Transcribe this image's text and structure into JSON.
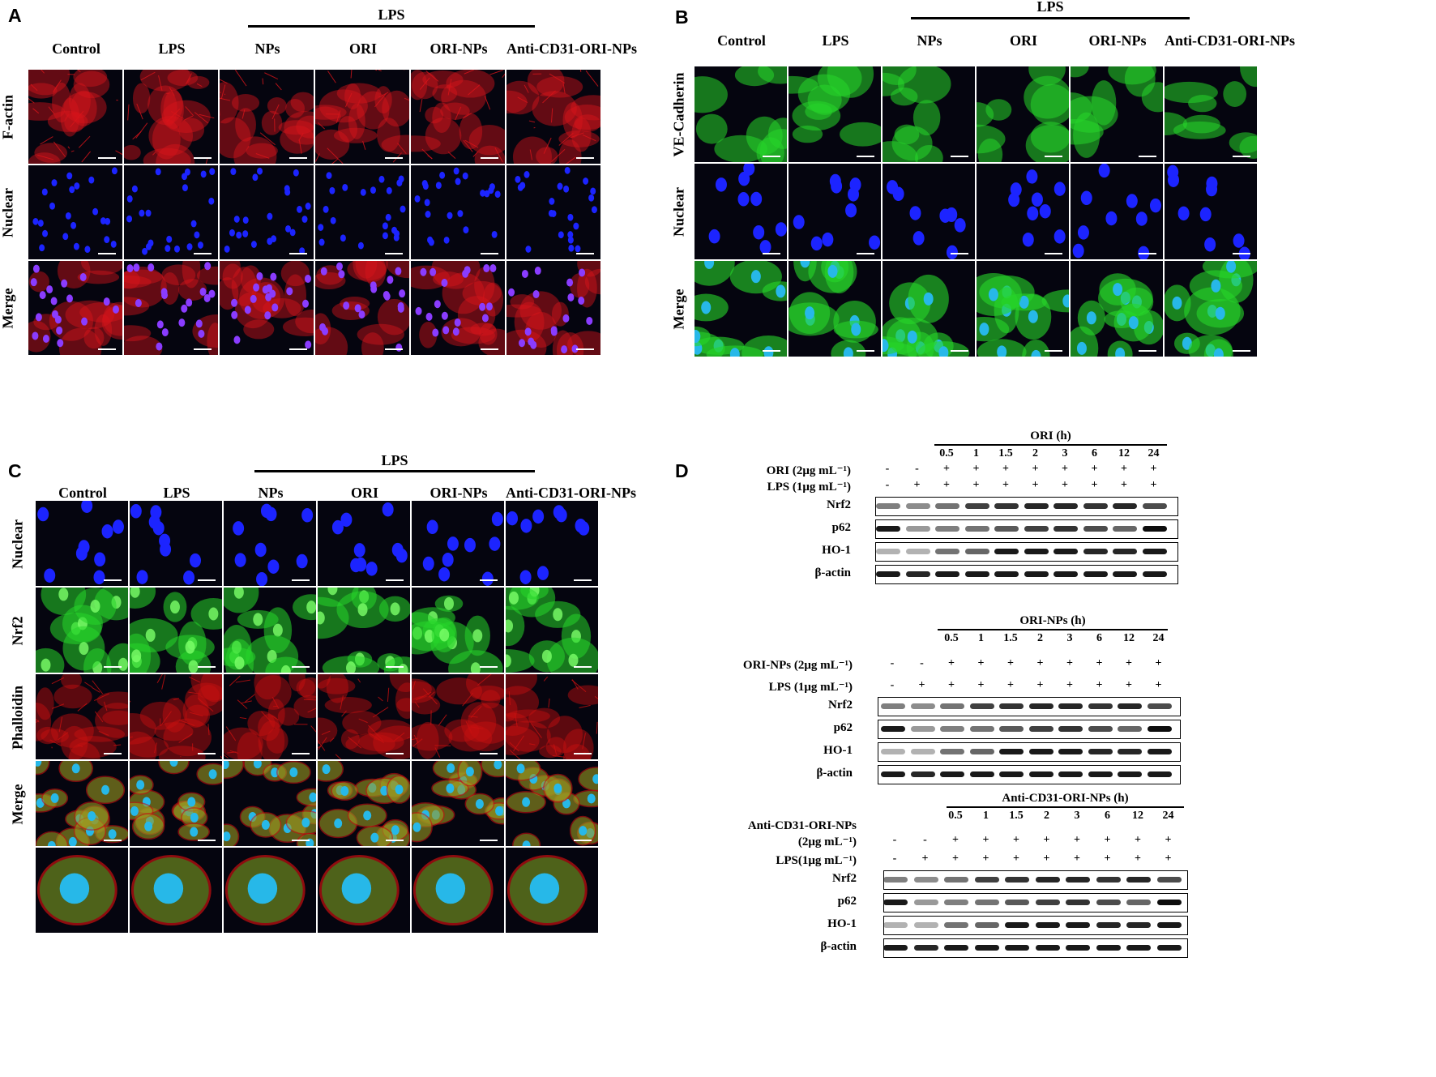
{
  "panels": {
    "A": {
      "letter": "A",
      "lps_label": "LPS",
      "columns": [
        "Control",
        "LPS",
        "NPs",
        "ORI",
        "ORI-NPs",
        "Anti-CD31-ORI-NPs"
      ],
      "rows": [
        "F-actin",
        "Nuclear",
        "Merge"
      ]
    },
    "B": {
      "letter": "B",
      "lps_label": "LPS",
      "columns": [
        "Control",
        "LPS",
        "NPs",
        "ORI",
        "ORI-NPs",
        "Anti-CD31-ORI-NPs"
      ],
      "rows": [
        "VE-Cadherin",
        "Nuclear",
        "Merge"
      ]
    },
    "C": {
      "letter": "C",
      "lps_label": "LPS",
      "columns": [
        "Control",
        "LPS",
        "NPs",
        "ORI",
        "ORI-NPs",
        "Anti-CD31-ORI-NPs"
      ],
      "rows": [
        "Nuclear",
        "Nrf2",
        "Phalloidin",
        "Merge"
      ]
    },
    "D": {
      "letter": "D",
      "blots": [
        {
          "title": "ORI (h)",
          "times": [
            "0.5",
            "1",
            "1.5",
            "2",
            "3",
            "6",
            "12",
            "24"
          ],
          "treat_label": "ORI (2μg mL⁻¹)",
          "treat_row": [
            "-",
            "-",
            "+",
            "+",
            "+",
            "+",
            "+",
            "+",
            "+",
            "+"
          ],
          "lps_label": "LPS (1μg mL⁻¹)",
          "lps_row": [
            "-",
            "+",
            "+",
            "+",
            "+",
            "+",
            "+",
            "+",
            "+",
            "+"
          ],
          "bands": [
            "Nrf2",
            "p62",
            "HO-1",
            "β-actin"
          ]
        },
        {
          "title": "ORI-NPs (h)",
          "times": [
            "0.5",
            "1",
            "1.5",
            "2",
            "3",
            "6",
            "12",
            "24"
          ],
          "treat_label": "ORI-NPs (2μg mL⁻¹)",
          "treat_row": [
            "-",
            "-",
            "+",
            "+",
            "+",
            "+",
            "+",
            "+",
            "+",
            "+"
          ],
          "lps_label": "LPS (1μg mL⁻¹)",
          "lps_row": [
            "-",
            "+",
            "+",
            "+",
            "+",
            "+",
            "+",
            "+",
            "+",
            "+"
          ],
          "bands": [
            "Nrf2",
            "p62",
            "HO-1",
            "β-actin"
          ]
        },
        {
          "title": "Anti-CD31-ORI-NPs (h)",
          "times": [
            "0.5",
            "1",
            "1.5",
            "2",
            "3",
            "6",
            "12",
            "24"
          ],
          "treat_label": "Anti-CD31-ORI-NPs",
          "treat_label_2": "(2μg mL⁻¹)",
          "treat_row": [
            "-",
            "-",
            "+",
            "+",
            "+",
            "+",
            "+",
            "+",
            "+",
            "+"
          ],
          "lps_label": "LPS(1μg mL⁻¹)",
          "lps_row": [
            "-",
            "+",
            "+",
            "+",
            "+",
            "+",
            "+",
            "+",
            "+",
            "+"
          ],
          "bands": [
            "Nrf2",
            "p62",
            "HO-1",
            "β-actin"
          ]
        }
      ]
    }
  },
  "colors": {
    "f_actin": "#d8141a",
    "nuclear": "#1c24ff",
    "ve_cadherin": "#27d62a",
    "merge_cyan": "#27b8e8",
    "phalloidin": "#c81010",
    "background": "#05050f"
  }
}
